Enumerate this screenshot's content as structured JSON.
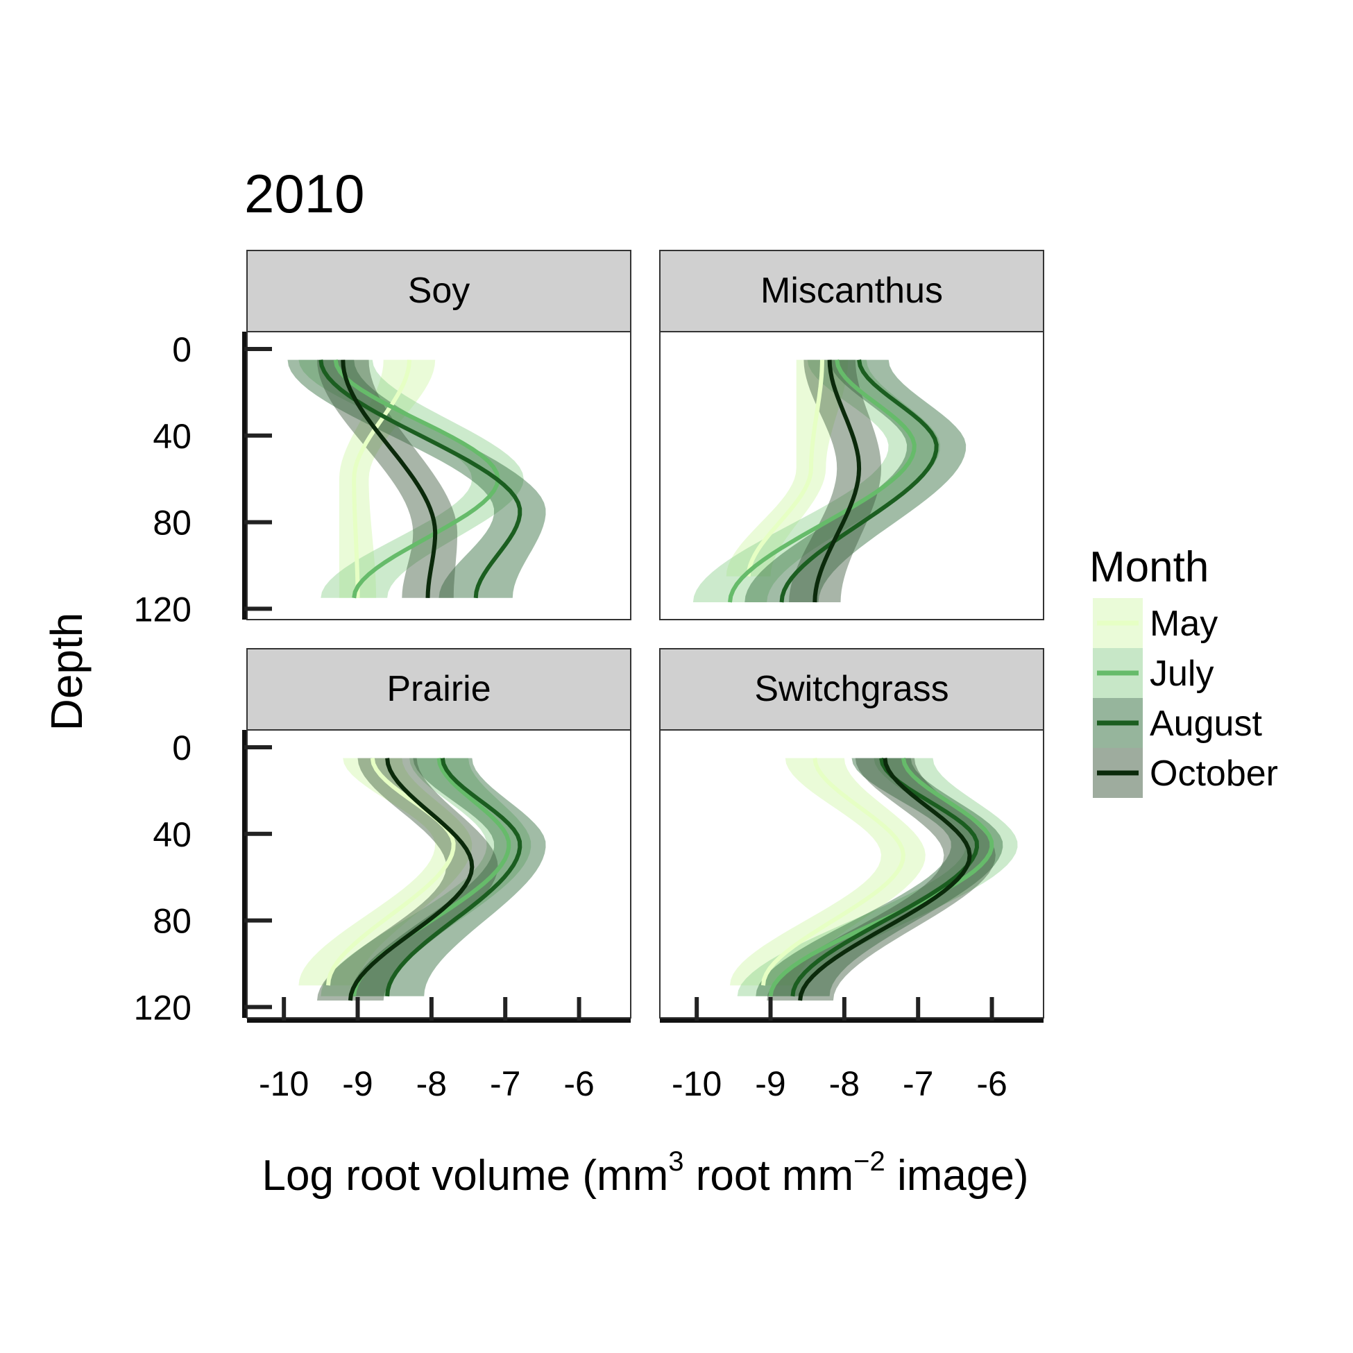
{
  "chart_data": {
    "type": "line",
    "title": "2010",
    "xlabel_prefix": "Log root volume (mm",
    "xlabel_sup1": "3",
    "xlabel_mid": " root mm",
    "xlabel_sup2": "−2",
    "xlabel_suffix": " image)",
    "ylabel": "Depth",
    "xlim": [
      -10.5,
      -5.3
    ],
    "ylim": [
      -8,
      125
    ],
    "x_ticks": [
      "-10",
      "-9",
      "-8",
      "-7",
      "-6"
    ],
    "y_ticks": [
      "0",
      "40",
      "80",
      "120"
    ],
    "legend": {
      "title": "Month",
      "position": "right",
      "entries": [
        "May",
        "July",
        "August",
        "October"
      ]
    },
    "colors": {
      "May": "#e6ffc4",
      "July": "#66bb6a",
      "August": "#1b5e20",
      "October": "#0b2a0b",
      "band_May": "#d9f7b8",
      "band_July": "#8fd08f",
      "band_August": "#2e6b3a",
      "band_October": "#3d5a3d",
      "strip": "#d0d0d0"
    },
    "panels": [
      {
        "name": "Soy",
        "series": [
          {
            "name": "May",
            "depth": [
              5,
              60,
              115
            ],
            "value": [
              -8.3,
              -9.05,
              -9.0
            ],
            "band": [
              0.35,
              0.2,
              0.25
            ]
          },
          {
            "name": "July",
            "depth": [
              5,
              60,
              115
            ],
            "value": [
              -9.3,
              -7.1,
              -9.05
            ],
            "band": [
              0.5,
              0.35,
              0.45
            ]
          },
          {
            "name": "August",
            "depth": [
              5,
              75,
              115
            ],
            "value": [
              -9.5,
              -6.8,
              -7.4
            ],
            "band": [
              0.45,
              0.35,
              0.5
            ]
          },
          {
            "name": "October",
            "depth": [
              5,
              85,
              115
            ],
            "value": [
              -9.2,
              -7.95,
              -8.05
            ],
            "band": [
              0.35,
              0.3,
              0.35
            ]
          }
        ]
      },
      {
        "name": "Miscanthus",
        "series": [
          {
            "name": "May",
            "depth": [
              5,
              55,
              105
            ],
            "value": [
              -8.3,
              -8.45,
              -9.3
            ],
            "band": [
              0.35,
              0.2,
              0.3
            ]
          },
          {
            "name": "July",
            "depth": [
              5,
              45,
              117
            ],
            "value": [
              -8.1,
              -7.05,
              -9.55
            ],
            "band": [
              0.4,
              0.35,
              0.5
            ]
          },
          {
            "name": "August",
            "depth": [
              5,
              45,
              117
            ],
            "value": [
              -7.8,
              -6.75,
              -8.85
            ],
            "band": [
              0.4,
              0.4,
              0.5
            ]
          },
          {
            "name": "October",
            "depth": [
              5,
              55,
              117
            ],
            "value": [
              -8.2,
              -7.8,
              -8.4
            ],
            "band": [
              0.35,
              0.3,
              0.35
            ]
          }
        ]
      },
      {
        "name": "Prairie",
        "series": [
          {
            "name": "May",
            "depth": [
              5,
              45,
              110
            ],
            "value": [
              -8.8,
              -7.7,
              -9.4
            ],
            "band": [
              0.4,
              0.25,
              0.4
            ]
          },
          {
            "name": "July",
            "depth": [
              5,
              45,
              115
            ],
            "value": [
              -7.9,
              -6.95,
              -9.05
            ],
            "band": [
              0.4,
              0.3,
              0.45
            ]
          },
          {
            "name": "August",
            "depth": [
              5,
              45,
              115
            ],
            "value": [
              -7.85,
              -6.8,
              -8.6
            ],
            "band": [
              0.4,
              0.35,
              0.5
            ]
          },
          {
            "name": "October",
            "depth": [
              5,
              55,
              117
            ],
            "value": [
              -8.6,
              -7.45,
              -9.1
            ],
            "band": [
              0.4,
              0.35,
              0.45
            ]
          }
        ]
      },
      {
        "name": "Switchgrass",
        "series": [
          {
            "name": "May",
            "depth": [
              5,
              50,
              110
            ],
            "value": [
              -8.4,
              -7.2,
              -9.1
            ],
            "band": [
              0.4,
              0.3,
              0.45
            ]
          },
          {
            "name": "July",
            "depth": [
              5,
              45,
              115
            ],
            "value": [
              -7.2,
              -6.0,
              -9.0
            ],
            "band": [
              0.4,
              0.35,
              0.45
            ]
          },
          {
            "name": "August",
            "depth": [
              5,
              45,
              115
            ],
            "value": [
              -7.5,
              -6.2,
              -8.7
            ],
            "band": [
              0.4,
              0.35,
              0.5
            ]
          },
          {
            "name": "October",
            "depth": [
              5,
              50,
              117
            ],
            "value": [
              -7.45,
              -6.3,
              -8.6
            ],
            "band": [
              0.4,
              0.35,
              0.45
            ]
          }
        ]
      }
    ]
  }
}
